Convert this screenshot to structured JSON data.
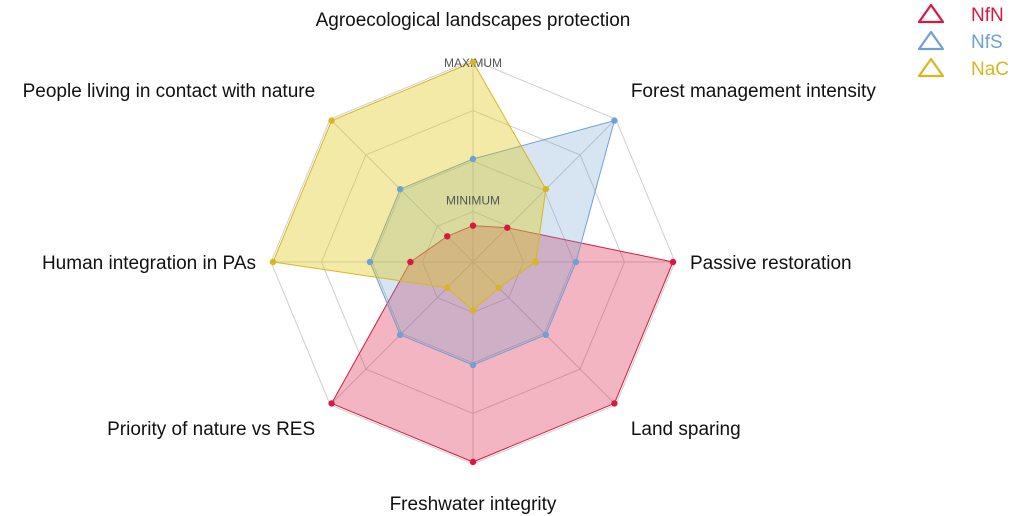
{
  "chart_data": {
    "type": "radar",
    "title": "",
    "axes": [
      "Agroecological landscapes protection",
      "Forest management intensity",
      "Passive restoration",
      "Land sparing",
      "Freshwater integrity",
      "Priority of nature vs RES",
      "Human integration in PAs",
      "People living in contact with nature"
    ],
    "level_labels": {
      "max": "MAXIMUM",
      "min": "MINIMUM"
    },
    "range": [
      0,
      1
    ],
    "series": [
      {
        "name": "NfN",
        "color": "#d7193f",
        "fill": "rgba(215,25,63,0.32)",
        "values": [
          0.18,
          0.24,
          0.99,
          0.99,
          0.99,
          0.99,
          0.31,
          0.18
        ]
      },
      {
        "name": "NfS",
        "color": "#6fa1d4",
        "fill": "rgba(111,161,212,0.28)",
        "values": [
          0.51,
          0.99,
          0.51,
          0.51,
          0.51,
          0.51,
          0.51,
          0.51
        ]
      },
      {
        "name": "NaC",
        "color": "#d9b620",
        "fill": "rgba(220,200,20,0.38)",
        "values": [
          0.99,
          0.51,
          0.31,
          0.18,
          0.24,
          0.18,
          0.99,
          0.99
        ]
      }
    ],
    "grid": true,
    "legend_position": "top-right"
  }
}
